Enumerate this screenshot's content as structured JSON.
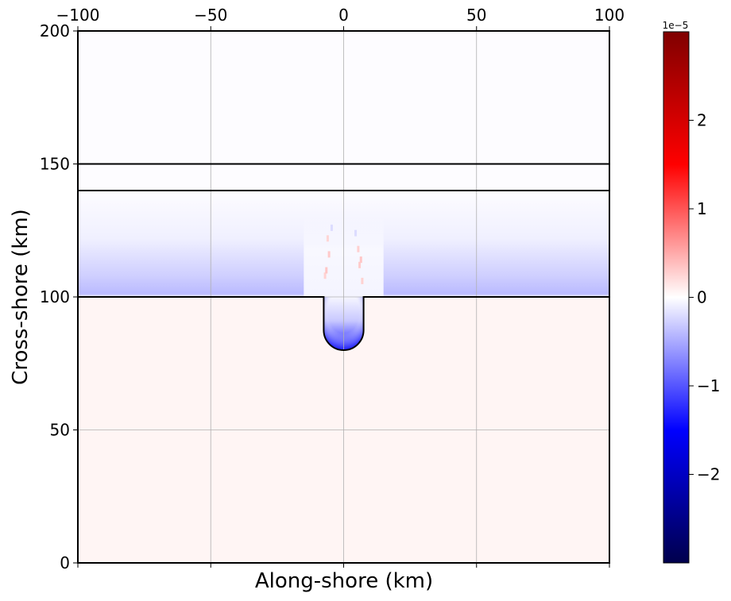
{
  "chart_data": {
    "type": "heatmap",
    "title": "",
    "xlabel": "Along-shore (km)",
    "ylabel": "Cross-shore (km)",
    "xlim": [
      -100,
      100
    ],
    "ylim": [
      0,
      200
    ],
    "x_ticks": [
      -100,
      -50,
      0,
      50,
      100
    ],
    "x_tick_labels": [
      "−100",
      "−50",
      "0",
      "50",
      "100"
    ],
    "y_ticks": [
      0,
      50,
      100,
      150,
      200
    ],
    "y_tick_labels": [
      "0",
      "50",
      "100",
      "150",
      "200"
    ],
    "grid": true,
    "colormap": "seismic",
    "colorbar": {
      "range": [
        -3e-05,
        3e-05
      ],
      "ticks": [
        -2,
        -1,
        0,
        1,
        2
      ],
      "tick_labels": [
        "−2",
        "−1",
        "0",
        "1",
        "2"
      ],
      "exponent_label": "1e−5",
      "colors": [
        "#00004c",
        "#0000ff",
        "#ffffff",
        "#ff0000",
        "#800000"
      ]
    },
    "field": {
      "offshore_band": {
        "y_range": [
          100,
          140
        ],
        "peak_value": -5e-06,
        "peak_at_y": 104
      },
      "lower_region": {
        "y_range": [
          0,
          100
        ],
        "value": 3e-07
      },
      "canyon": {
        "x_range": [
          -7.5,
          7.5
        ],
        "y_range": [
          80,
          100
        ],
        "value": -1.3e-05
      }
    },
    "contours": [
      {
        "type": "horizontal",
        "y": 150
      },
      {
        "type": "horizontal",
        "y": 140
      },
      {
        "type": "coastline",
        "y": 100,
        "canyon_half_width": 7.5,
        "canyon_bottom": 80
      }
    ]
  }
}
